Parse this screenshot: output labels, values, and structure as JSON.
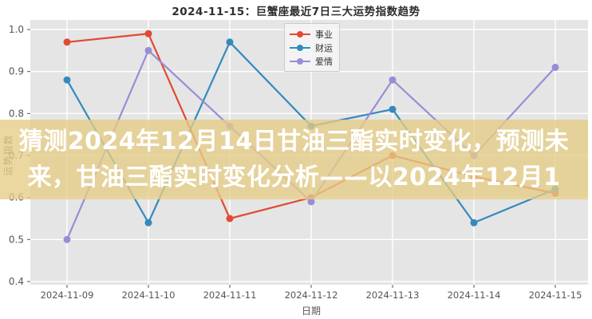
{
  "banner": {
    "line1": "猜测2024年12月14日甘油三酯实时变化，预测未",
    "line2": "来，甘油三酯实时变化分析——以2024年12月1",
    "bg_color": "#e5cd87",
    "text_color": "#ffffff"
  },
  "chart_data": {
    "type": "line",
    "title": "2024-11-15：巨蟹座最近7日三大运势指数趋势",
    "xlabel": "日期",
    "ylabel": "运势指数",
    "categories": [
      "2024-11-09",
      "2024-11-10",
      "2024-11-11",
      "2024-11-12",
      "2024-11-13",
      "2024-11-14",
      "2024-11-15"
    ],
    "series": [
      {
        "name": "事业",
        "color": "#E24A33",
        "values": [
          0.97,
          0.99,
          0.55,
          0.6,
          0.7,
          0.65,
          0.61
        ]
      },
      {
        "name": "财运",
        "color": "#348ABD",
        "values": [
          0.88,
          0.54,
          0.97,
          0.77,
          0.81,
          0.54,
          0.62
        ]
      },
      {
        "name": "爱情",
        "color": "#988ED5",
        "values": [
          0.5,
          0.95,
          0.77,
          0.59,
          0.88,
          0.7,
          0.91
        ]
      }
    ],
    "ylim": [
      0.4,
      1.0
    ],
    "yticks": [
      1.0,
      0.9,
      0.8,
      0.7,
      0.6,
      0.5,
      0.4
    ],
    "grid": "on",
    "legend_position": "upper center",
    "plot_bg": "#e5e5e5",
    "grid_color": "#ffffff",
    "tick_color": "#555555"
  }
}
